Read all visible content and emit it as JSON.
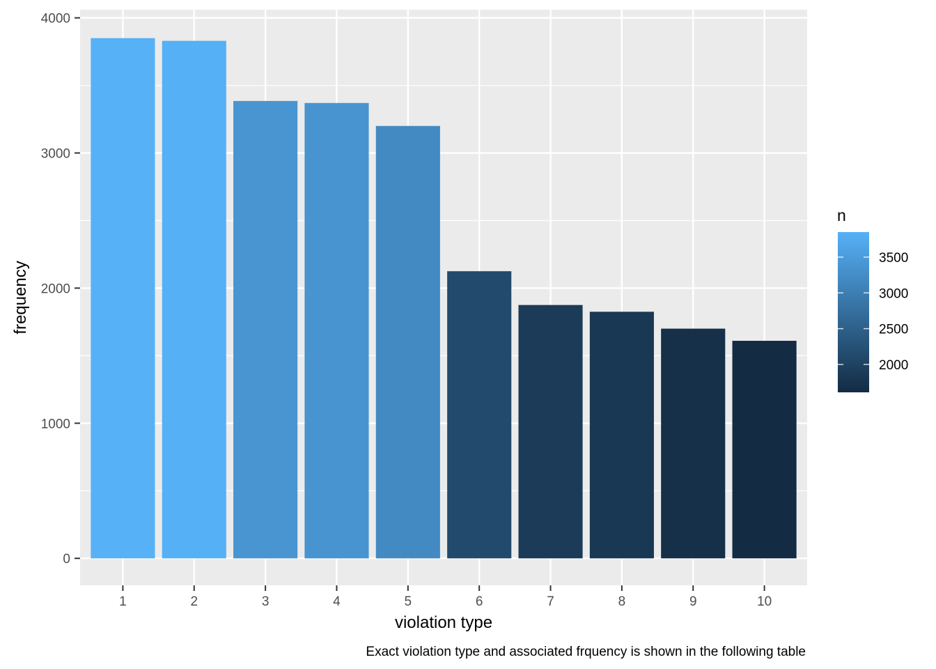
{
  "chart_data": {
    "type": "bar",
    "categories": [
      "1",
      "2",
      "3",
      "4",
      "5",
      "6",
      "7",
      "8",
      "9",
      "10"
    ],
    "values": [
      3850,
      3830,
      3385,
      3370,
      3200,
      2125,
      1875,
      1825,
      1700,
      1610
    ],
    "xlabel": "violation type",
    "ylabel": "frequency",
    "ylim": [
      -200,
      4060
    ],
    "yticks": [
      0,
      1000,
      2000,
      3000,
      4000
    ],
    "y_tick_labels": [
      "0",
      "1000",
      "2000",
      "3000",
      "4000"
    ],
    "caption": "Exact violation type and associated frquency is shown in the following table",
    "grid": true,
    "legend": {
      "title": "n",
      "placement": "right",
      "range": [
        1610,
        3850
      ],
      "ticks": [
        2000,
        2500,
        3000,
        3500
      ],
      "tick_labels": [
        "2000",
        "2500",
        "3000",
        "3500"
      ],
      "color_low": "#132B43",
      "color_high": "#56B1F7"
    },
    "panel_background": "#EBEBEB",
    "grid_color": "#FFFFFF"
  }
}
